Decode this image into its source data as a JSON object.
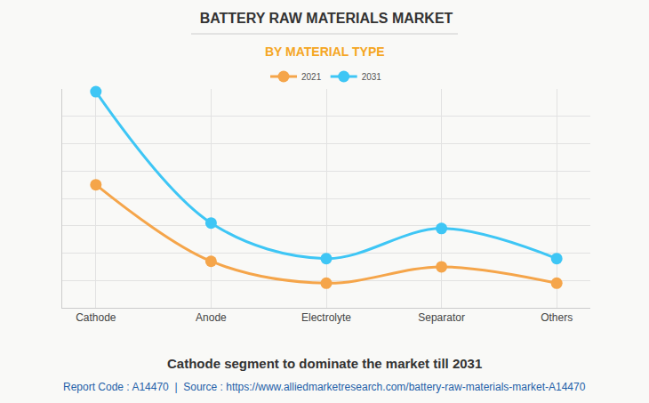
{
  "chart_data": {
    "type": "line",
    "title": "BATTERY RAW MATERIALS MARKET",
    "subtitle": "BY MATERIAL TYPE",
    "categories": [
      "Cathode",
      "Anode",
      "Electrolyte",
      "Separator",
      "Others"
    ],
    "series": [
      {
        "name": "2021",
        "color": "#f5a54a",
        "values": [
          4.5,
          1.7,
          0.9,
          1.5,
          0.9
        ]
      },
      {
        "name": "2031",
        "color": "#3ec6f5",
        "values": [
          7.9,
          3.1,
          1.8,
          2.9,
          1.8
        ]
      }
    ],
    "ylim": [
      0,
      8
    ],
    "yticks": [
      0,
      1,
      2,
      3,
      4,
      5,
      6,
      7,
      8
    ],
    "grid": true,
    "tick_labels": "x",
    "marker": "circle",
    "line_style": "spline",
    "legend": "top",
    "annotations": [
      "Cathode segment to dominate the market till 2031",
      "Report Code : A14470  |  Source : https://www.alliedmarketresearch.com/battery-raw-materials-market-A14470"
    ]
  }
}
